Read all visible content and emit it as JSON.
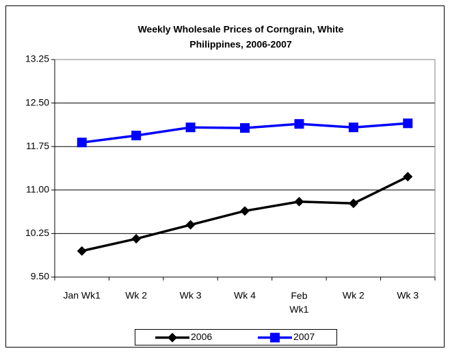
{
  "chart_data": {
    "type": "line",
    "title": [
      "Weekly Wholesale Prices of Corngrain, White",
      "Philippines, 2006-2007"
    ],
    "categories": [
      "Jan Wk1",
      "Wk 2",
      "Wk 3",
      "Wk 4",
      "Feb Wk1",
      "Wk 2",
      "Wk 3"
    ],
    "series": [
      {
        "name": "2006",
        "color": "#000000",
        "marker": "diamond",
        "values": [
          9.95,
          10.16,
          10.4,
          10.64,
          10.8,
          10.77,
          11.23
        ]
      },
      {
        "name": "2007",
        "color": "#0000ff",
        "marker": "square",
        "values": [
          11.82,
          11.94,
          12.08,
          12.07,
          12.14,
          12.08,
          12.15
        ]
      }
    ],
    "ylim": [
      9.5,
      13.25
    ],
    "yticks": [
      {
        "value": 9.5,
        "label": "9.50"
      },
      {
        "value": 10.25,
        "label": "10.25"
      },
      {
        "value": 11,
        "label": "11.00"
      },
      {
        "value": 11.75,
        "label": "11.75"
      },
      {
        "value": 12.5,
        "label": "12.50"
      },
      {
        "value": 13.25,
        "label": "13.25"
      }
    ],
    "grid": true,
    "legend": "bottom"
  }
}
